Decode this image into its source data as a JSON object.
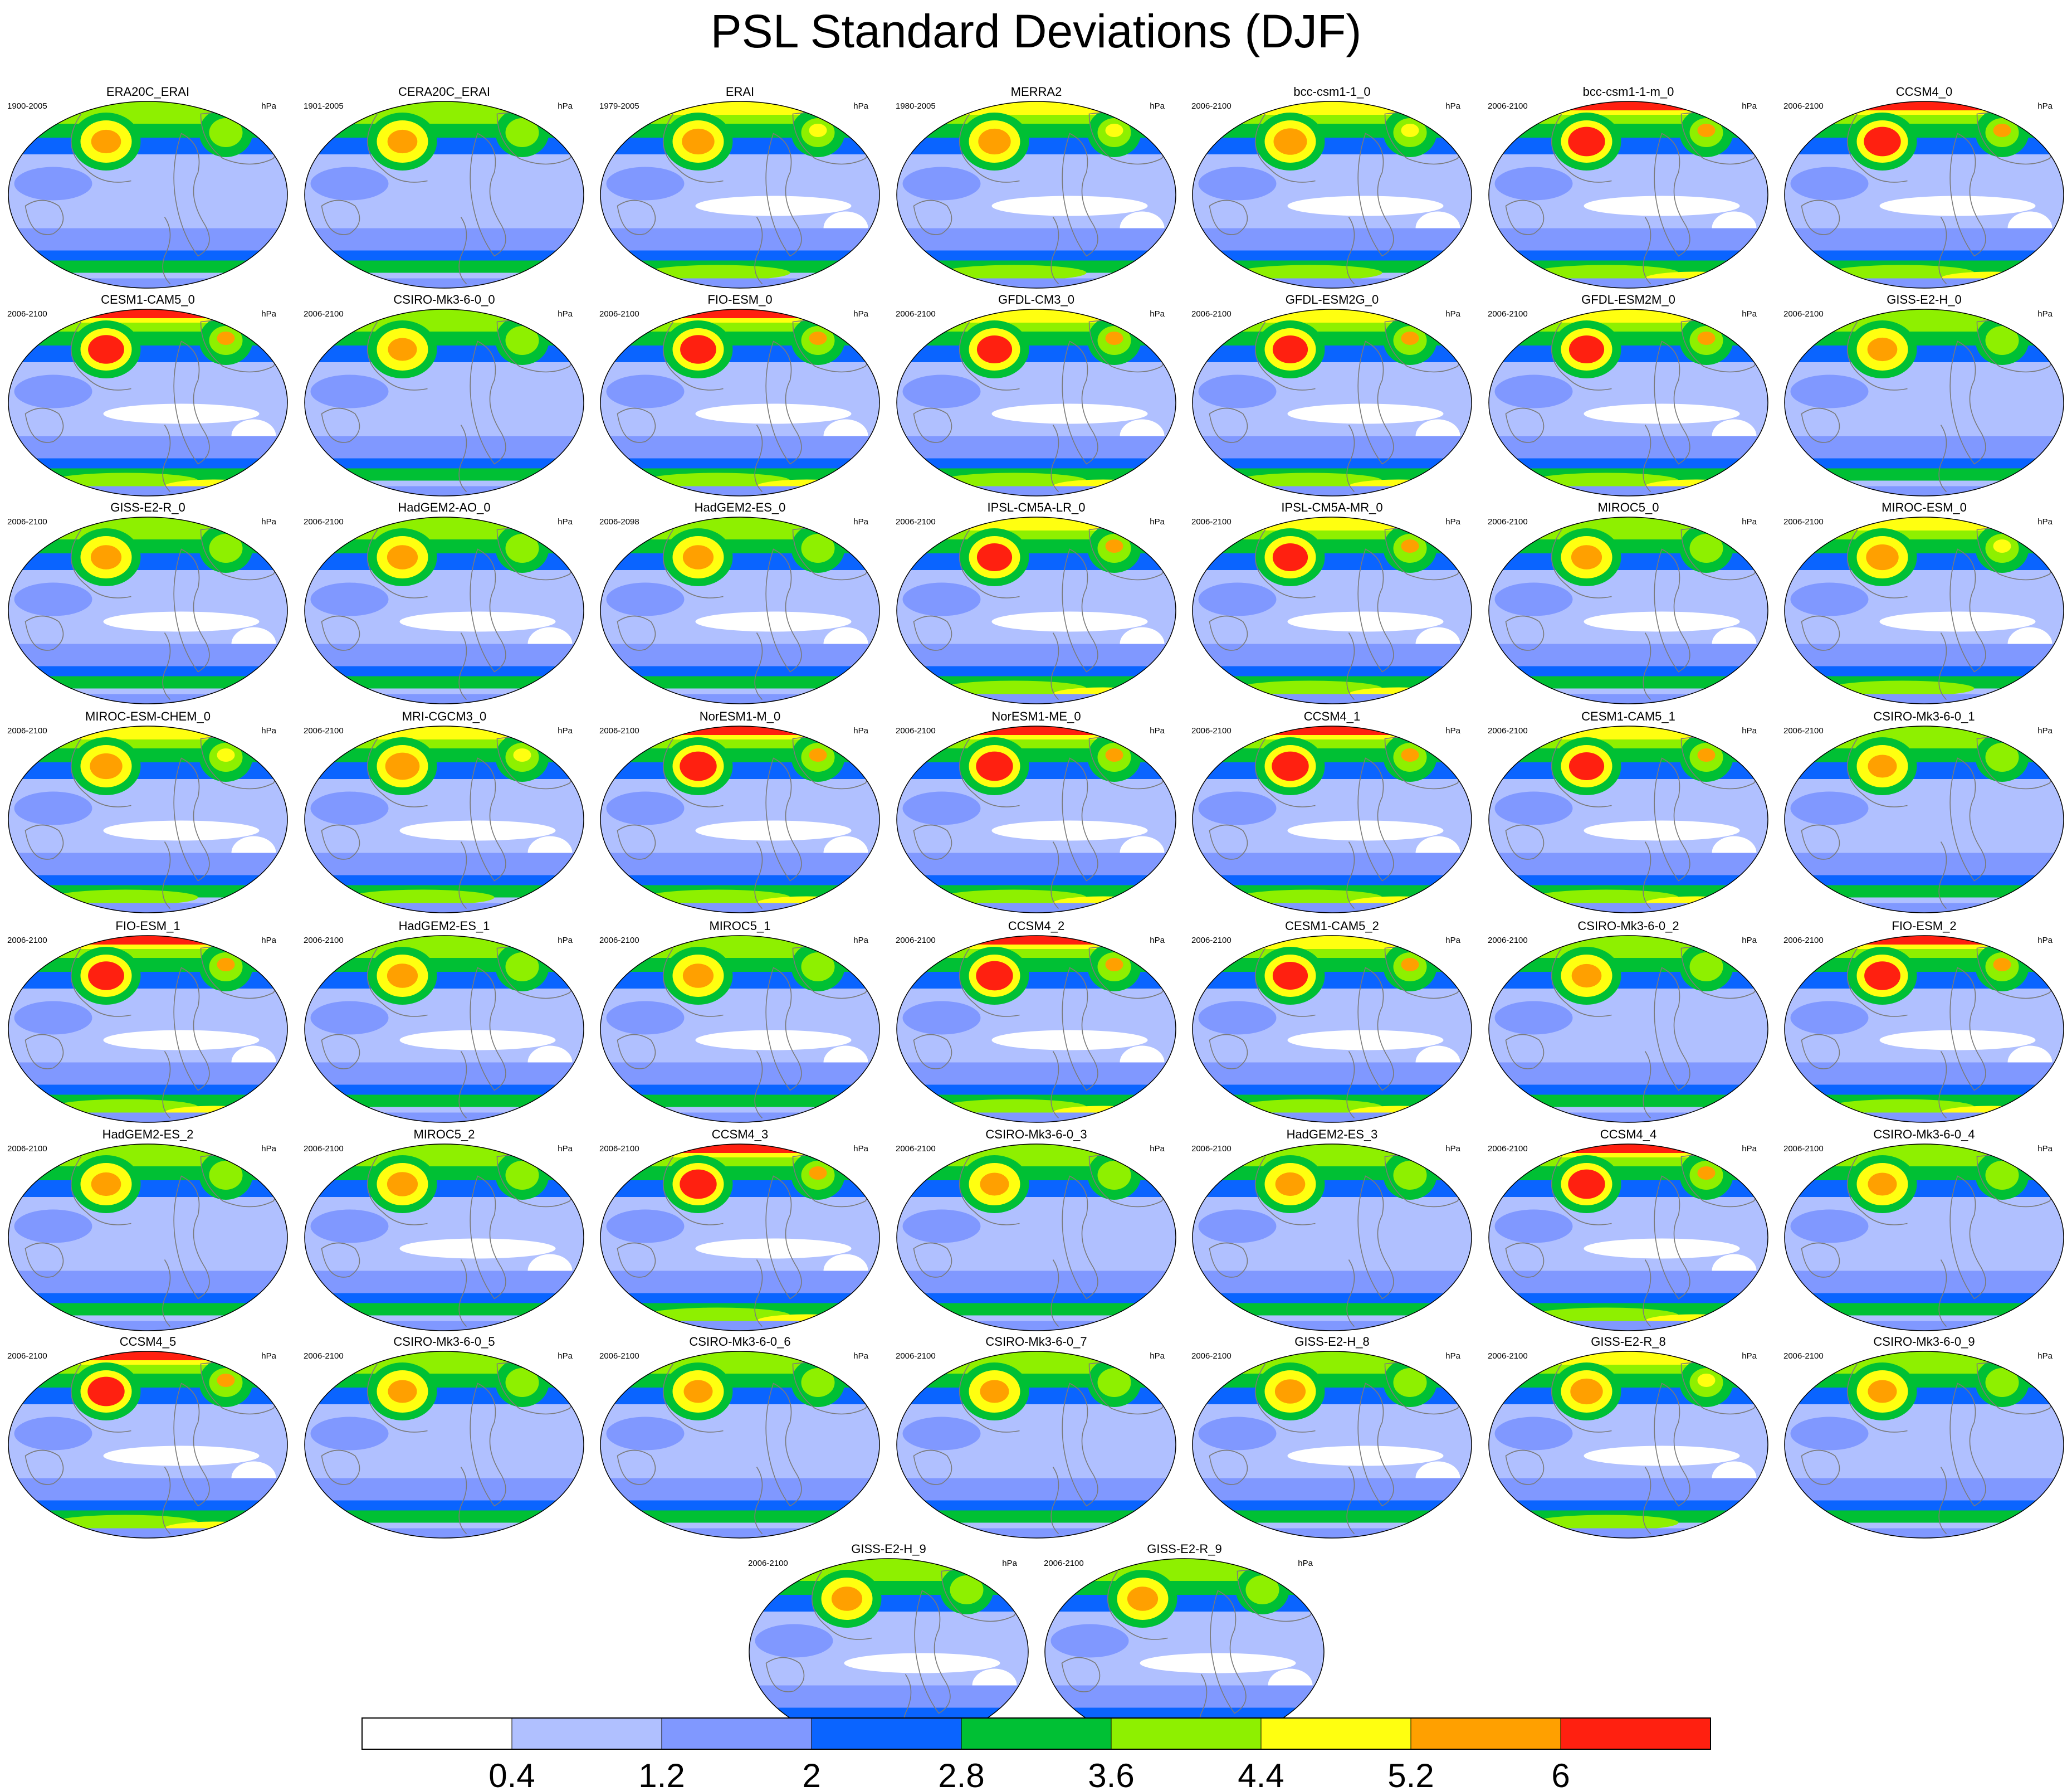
{
  "title": "PSL Standard Deviations (DJF)",
  "chart_data": {
    "type": "map-panel-grid",
    "title": "PSL Standard Deviations (DJF)",
    "projection": "Robinson (global)",
    "units": "hPa",
    "colorbar": {
      "tick_labels": [
        "0.4",
        "1.2",
        "2",
        "2.8",
        "3.6",
        "4.4",
        "5.2",
        "6"
      ],
      "colors": [
        "#ffffff",
        "#b0c0ff",
        "#8098ff",
        "#0a64ff",
        "#00c034",
        "#8ef000",
        "#ffff10",
        "#ffa000",
        "#ff2010"
      ]
    },
    "panels": [
      {
        "name": "ERA20C_ERAI",
        "years": "1900-2005",
        "units": "hPa",
        "intensity": 0.55
      },
      {
        "name": "CERA20C_ERAI",
        "years": "1901-2005",
        "units": "hPa",
        "intensity": 0.55
      },
      {
        "name": "ERAI",
        "years": "1979-2005",
        "units": "hPa",
        "intensity": 0.7
      },
      {
        "name": "MERRA2",
        "years": "1980-2005",
        "units": "hPa",
        "intensity": 0.7
      },
      {
        "name": "bcc-csm1-1_0",
        "years": "2006-2100",
        "units": "hPa",
        "intensity": 0.75
      },
      {
        "name": "bcc-csm1-1-m_0",
        "years": "2006-2100",
        "units": "hPa",
        "intensity": 0.95
      },
      {
        "name": "CCSM4_0",
        "years": "2006-2100",
        "units": "hPa",
        "intensity": 0.95
      },
      {
        "name": "CESM1-CAM5_0",
        "years": "2006-2100",
        "units": "hPa",
        "intensity": 0.9
      },
      {
        "name": "CSIRO-Mk3-6-0_0",
        "years": "2006-2100",
        "units": "hPa",
        "intensity": 0.5
      },
      {
        "name": "FIO-ESM_0",
        "years": "2006-2100",
        "units": "hPa",
        "intensity": 0.9
      },
      {
        "name": "GFDL-CM3_0",
        "years": "2006-2100",
        "units": "hPa",
        "intensity": 0.85
      },
      {
        "name": "GFDL-ESM2G_0",
        "years": "2006-2100",
        "units": "hPa",
        "intensity": 0.85
      },
      {
        "name": "GFDL-ESM2M_0",
        "years": "2006-2100",
        "units": "hPa",
        "intensity": 0.85
      },
      {
        "name": "GISS-E2-H_0",
        "years": "2006-2100",
        "units": "hPa",
        "intensity": 0.55
      },
      {
        "name": "GISS-E2-R_0",
        "years": "2006-2100",
        "units": "hPa",
        "intensity": 0.6
      },
      {
        "name": "HadGEM2-AO_0",
        "years": "2006-2100",
        "units": "hPa",
        "intensity": 0.6
      },
      {
        "name": "HadGEM2-ES_0",
        "years": "2006-2098",
        "units": "hPa",
        "intensity": 0.6
      },
      {
        "name": "IPSL-CM5A-LR_0",
        "years": "2006-2100",
        "units": "hPa",
        "intensity": 0.85
      },
      {
        "name": "IPSL-CM5A-MR_0",
        "years": "2006-2100",
        "units": "hPa",
        "intensity": 0.85
      },
      {
        "name": "MIROC5_0",
        "years": "2006-2100",
        "units": "hPa",
        "intensity": 0.6
      },
      {
        "name": "MIROC-ESM_0",
        "years": "2006-2100",
        "units": "hPa",
        "intensity": 0.7
      },
      {
        "name": "MIROC-ESM-CHEM_0",
        "years": "2006-2100",
        "units": "hPa",
        "intensity": 0.7
      },
      {
        "name": "MRI-CGCM3_0",
        "years": "2006-2100",
        "units": "hPa",
        "intensity": 0.8
      },
      {
        "name": "NorESM1-M_0",
        "years": "2006-2100",
        "units": "hPa",
        "intensity": 0.95
      },
      {
        "name": "NorESM1-ME_0",
        "years": "2006-2100",
        "units": "hPa",
        "intensity": 0.95
      },
      {
        "name": "CCSM4_1",
        "years": "2006-2100",
        "units": "hPa",
        "intensity": 0.95
      },
      {
        "name": "CESM1-CAM5_1",
        "years": "2006-2100",
        "units": "hPa",
        "intensity": 0.85
      },
      {
        "name": "CSIRO-Mk3-6-0_1",
        "years": "2006-2100",
        "units": "hPa",
        "intensity": 0.5
      },
      {
        "name": "FIO-ESM_1",
        "years": "2006-2100",
        "units": "hPa",
        "intensity": 0.9
      },
      {
        "name": "HadGEM2-ES_1",
        "years": "2006-2100",
        "units": "hPa",
        "intensity": 0.6
      },
      {
        "name": "MIROC5_1",
        "years": "2006-2100",
        "units": "hPa",
        "intensity": 0.6
      },
      {
        "name": "CCSM4_2",
        "years": "2006-2100",
        "units": "hPa",
        "intensity": 0.95
      },
      {
        "name": "CESM1-CAM5_2",
        "years": "2006-2100",
        "units": "hPa",
        "intensity": 0.85
      },
      {
        "name": "CSIRO-Mk3-6-0_2",
        "years": "2006-2100",
        "units": "hPa",
        "intensity": 0.55
      },
      {
        "name": "FIO-ESM_2",
        "years": "2006-2100",
        "units": "hPa",
        "intensity": 0.9
      },
      {
        "name": "HadGEM2-ES_2",
        "years": "2006-2100",
        "units": "hPa",
        "intensity": 0.55
      },
      {
        "name": "MIROC5_2",
        "years": "2006-2100",
        "units": "hPa",
        "intensity": 0.6
      },
      {
        "name": "CCSM4_3",
        "years": "2006-2100",
        "units": "hPa",
        "intensity": 0.95
      },
      {
        "name": "CSIRO-Mk3-6-0_3",
        "years": "2006-2100",
        "units": "hPa",
        "intensity": 0.5
      },
      {
        "name": "HadGEM2-ES_3",
        "years": "2006-2100",
        "units": "hPa",
        "intensity": 0.55
      },
      {
        "name": "CCSM4_4",
        "years": "2006-2100",
        "units": "hPa",
        "intensity": 0.95
      },
      {
        "name": "CSIRO-Mk3-6-0_4",
        "years": "2006-2100",
        "units": "hPa",
        "intensity": 0.5
      },
      {
        "name": "CCSM4_5",
        "years": "2006-2100",
        "units": "hPa",
        "intensity": 0.95
      },
      {
        "name": "CSIRO-Mk3-6-0_5",
        "years": "2006-2100",
        "units": "hPa",
        "intensity": 0.5
      },
      {
        "name": "CSIRO-Mk3-6-0_6",
        "years": "2006-2100",
        "units": "hPa",
        "intensity": 0.5
      },
      {
        "name": "CSIRO-Mk3-6-0_7",
        "years": "2006-2100",
        "units": "hPa",
        "intensity": 0.5
      },
      {
        "name": "GISS-E2-H_8",
        "years": "2006-2100",
        "units": "hPa",
        "intensity": 0.6
      },
      {
        "name": "GISS-E2-R_8",
        "years": "2006-2100",
        "units": "hPa",
        "intensity": 0.7
      },
      {
        "name": "CSIRO-Mk3-6-0_9",
        "years": "2006-2100",
        "units": "hPa",
        "intensity": 0.5
      },
      {
        "name": "GISS-E2-H_9",
        "years": "2006-2100",
        "units": "hPa",
        "intensity": 0.6
      },
      {
        "name": "GISS-E2-R_9",
        "years": "2006-2100",
        "units": "hPa",
        "intensity": 0.6
      }
    ]
  }
}
